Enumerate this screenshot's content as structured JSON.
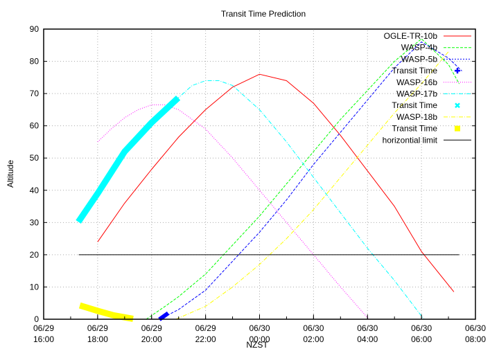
{
  "chart_data": {
    "type": "line",
    "title": "Transit Time Prediction",
    "xlabel": "NZST",
    "ylabel": "Altitude",
    "ylim": [
      0,
      90
    ],
    "xlim_hours": [
      16,
      32
    ],
    "yticks": [
      0,
      10,
      20,
      30,
      40,
      50,
      60,
      70,
      80,
      90
    ],
    "xticks": [
      {
        "h": 16,
        "date": "06/29",
        "time": "16:00"
      },
      {
        "h": 18,
        "date": "06/29",
        "time": "18:00"
      },
      {
        "h": 20,
        "date": "06/29",
        "time": "20:00"
      },
      {
        "h": 22,
        "date": "06/29",
        "time": "22:00"
      },
      {
        "h": 24,
        "date": "06/30",
        "time": "00:00"
      },
      {
        "h": 26,
        "date": "06/30",
        "time": "02:00"
      },
      {
        "h": 28,
        "date": "06/30",
        "time": "04:00"
      },
      {
        "h": 30,
        "date": "06/30",
        "time": "06:00"
      },
      {
        "h": 32,
        "date": "06/30",
        "time": "08:00"
      }
    ],
    "grid": true,
    "legend_position": "top-right inside",
    "series": [
      {
        "name": "OGLE-TR-10b",
        "color": "#ff0000",
        "style": "solid",
        "width": 1,
        "points": [
          [
            18,
            24
          ],
          [
            19,
            36
          ],
          [
            20,
            46.5
          ],
          [
            21,
            56.5
          ],
          [
            22,
            65
          ],
          [
            23,
            72
          ],
          [
            24,
            76
          ],
          [
            25,
            74
          ],
          [
            26,
            67
          ],
          [
            27,
            57
          ],
          [
            28,
            46
          ],
          [
            29,
            35
          ],
          [
            30,
            21
          ],
          [
            31.2,
            8.5
          ]
        ]
      },
      {
        "name": "WASP-4b",
        "color": "#00ff00",
        "style": "dashed",
        "width": 1,
        "points": [
          [
            19.8,
            0
          ],
          [
            20.5,
            4
          ],
          [
            21,
            7
          ],
          [
            22,
            14
          ],
          [
            23,
            23
          ],
          [
            24,
            32
          ],
          [
            25,
            42
          ],
          [
            26,
            52
          ],
          [
            27,
            62
          ],
          [
            28,
            71
          ],
          [
            29,
            80
          ],
          [
            30,
            87
          ],
          [
            31,
            79
          ],
          [
            31.4,
            73
          ]
        ]
      },
      {
        "name": "WASP-5b",
        "color": "#0000ff",
        "style": "dashed",
        "width": 1,
        "points": [
          [
            20.3,
            0
          ],
          [
            21,
            3
          ],
          [
            22,
            9
          ],
          [
            23,
            18
          ],
          [
            24,
            27
          ],
          [
            25,
            37
          ],
          [
            26,
            48
          ],
          [
            27,
            58
          ],
          [
            28,
            68
          ],
          [
            29,
            78
          ],
          [
            30,
            86
          ],
          [
            31,
            81
          ],
          [
            31.5,
            77
          ]
        ]
      },
      {
        "name": "Transit Time",
        "color": "#0000ff",
        "style": "thick",
        "width": 6,
        "points": [
          [
            20.35,
            0.3
          ],
          [
            20.55,
            1.5
          ]
        ]
      },
      {
        "name": "WASP-16b",
        "color": "#ff00ff",
        "style": "dotted",
        "width": 1,
        "points": [
          [
            18,
            55
          ],
          [
            18.5,
            59
          ],
          [
            19,
            62.5
          ],
          [
            19.5,
            65
          ],
          [
            20,
            66.5
          ],
          [
            20.5,
            66.5
          ],
          [
            21,
            65
          ],
          [
            22,
            59
          ],
          [
            23,
            50
          ],
          [
            24,
            40
          ],
          [
            25,
            30
          ],
          [
            26,
            20
          ],
          [
            27,
            10
          ],
          [
            28.05,
            0
          ]
        ]
      },
      {
        "name": "WASP-17b",
        "color": "#00ffff",
        "style": "dashdot",
        "width": 1,
        "points": [
          [
            20.9,
            68
          ],
          [
            21.5,
            72.5
          ],
          [
            22,
            74
          ],
          [
            22.5,
            74
          ],
          [
            23,
            72.5
          ],
          [
            24,
            65
          ],
          [
            25,
            55
          ],
          [
            26,
            44
          ],
          [
            27,
            33
          ],
          [
            28,
            22
          ],
          [
            29,
            12
          ],
          [
            30,
            1
          ],
          [
            30.1,
            0
          ]
        ]
      },
      {
        "name": "Transit Time",
        "color": "#00ffff",
        "style": "thick",
        "width": 9,
        "points": [
          [
            17.35,
            31
          ],
          [
            18,
            39
          ],
          [
            19,
            52
          ],
          [
            20,
            61
          ],
          [
            20.9,
            68
          ]
        ]
      },
      {
        "name": "WASP-18b",
        "color": "#ffff00",
        "style": "dashdot",
        "width": 1,
        "points": [
          [
            20.9,
            0
          ],
          [
            22,
            4
          ],
          [
            23,
            10
          ],
          [
            24,
            17
          ],
          [
            25,
            25
          ],
          [
            26,
            34
          ],
          [
            27,
            44
          ],
          [
            28,
            54
          ],
          [
            29,
            64
          ],
          [
            30,
            73
          ],
          [
            31,
            83
          ]
        ]
      },
      {
        "name": "Transit Time",
        "color": "#ffff00",
        "style": "thick",
        "width": 9,
        "points": [
          [
            17.45,
            4
          ],
          [
            18,
            2.6
          ],
          [
            18.6,
            1.2
          ],
          [
            19.2,
            0.3
          ]
        ]
      },
      {
        "name": "horizontial limit",
        "color": "#000000",
        "style": "solid",
        "width": 1,
        "points": [
          [
            17.3,
            20
          ],
          [
            31.4,
            20
          ]
        ]
      }
    ],
    "legend": [
      {
        "label": "OGLE-TR-10b",
        "color": "#ff0000",
        "type": "line",
        "dash": ""
      },
      {
        "label": "WASP-4b",
        "color": "#00ff00",
        "type": "line",
        "dash": "4,2"
      },
      {
        "label": "WASP-5b",
        "color": "#0000ff",
        "type": "line",
        "dash": "2,2"
      },
      {
        "label": "Transit Time",
        "color": "#0000ff",
        "type": "plus"
      },
      {
        "label": "WASP-16b",
        "color": "#ff00ff",
        "type": "line",
        "dash": "1,2"
      },
      {
        "label": "WASP-17b",
        "color": "#00ffff",
        "type": "line",
        "dash": "6,2,1,2"
      },
      {
        "label": "Transit Time",
        "color": "#00ffff",
        "type": "cross"
      },
      {
        "label": "WASP-18b",
        "color": "#ffff00",
        "type": "line",
        "dash": "6,2,1,2"
      },
      {
        "label": "Transit Time",
        "color": "#ffff00",
        "type": "square"
      },
      {
        "label": "horizontial limit",
        "color": "#000000",
        "type": "line",
        "dash": ""
      }
    ]
  }
}
